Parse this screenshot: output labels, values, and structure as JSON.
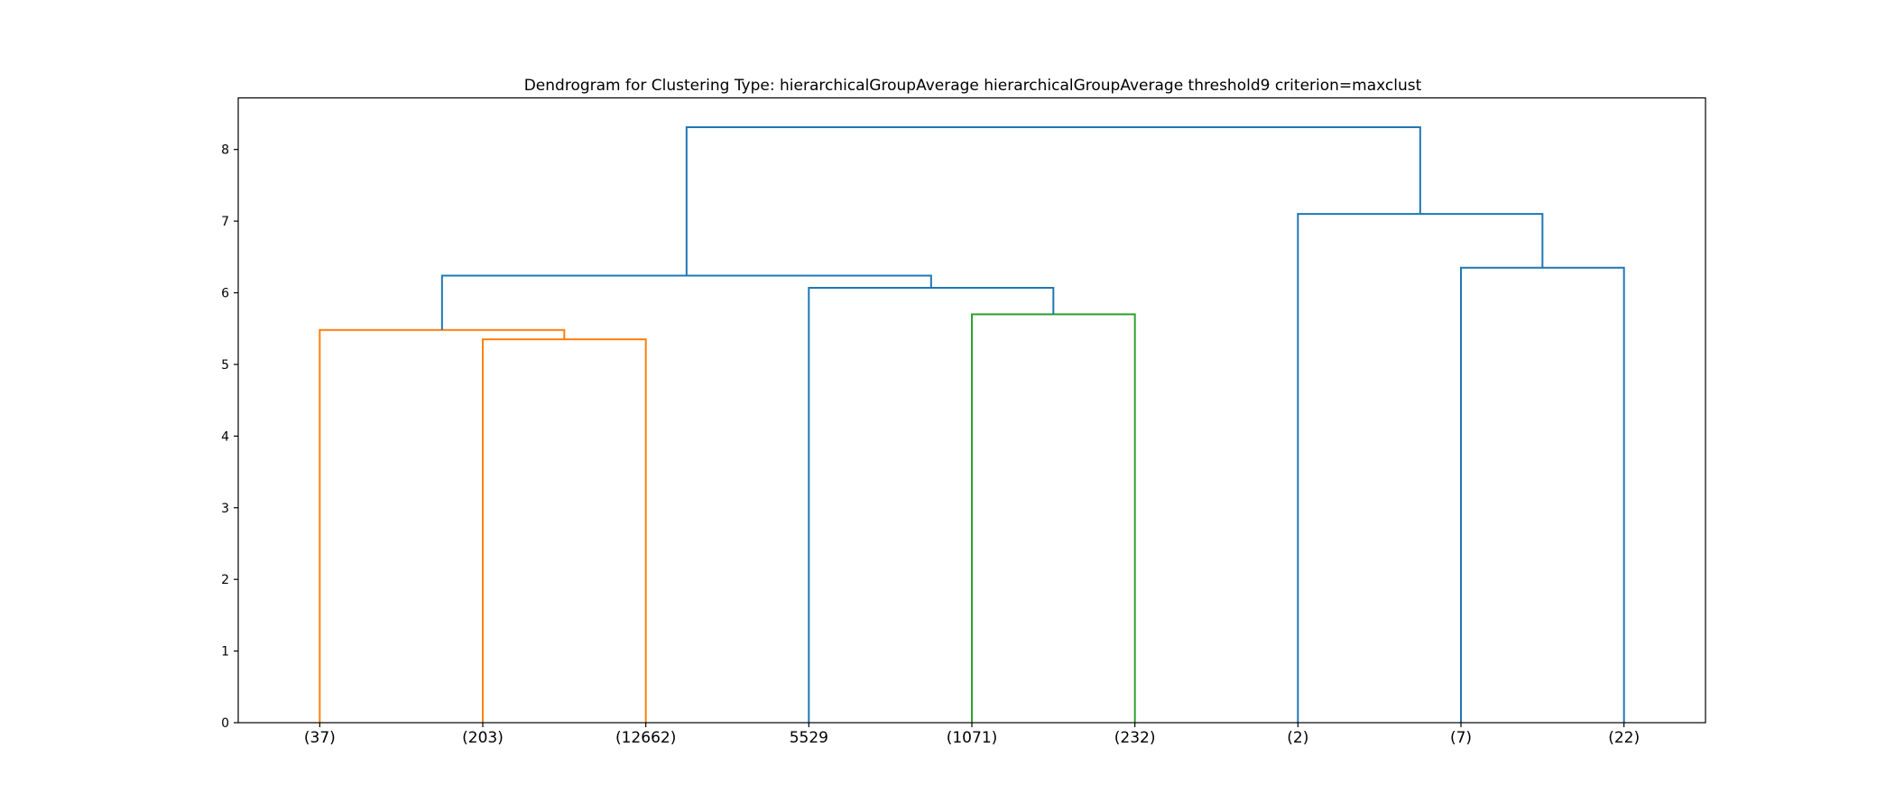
{
  "chart_data": {
    "type": "dendrogram",
    "title": "Dendrogram for Clustering Type: hierarchicalGroupAverage hierarchicalGroupAverage threshold9 criterion=maxclust",
    "xlabel": "",
    "ylabel": "",
    "ylim": [
      0,
      8.72
    ],
    "yticks": [
      0,
      1,
      2,
      3,
      4,
      5,
      6,
      7,
      8
    ],
    "grid": false,
    "leaves": [
      "(37)",
      "(203)",
      "(12662)",
      "5529",
      "(1071)",
      "(232)",
      "(2)",
      "(7)",
      "(22)"
    ],
    "colors": {
      "cluster_orange": "#ff7f0e",
      "cluster_green": "#2ca02c",
      "above_threshold": "#1f77b4"
    },
    "links": [
      {
        "left": 1,
        "right": 2,
        "height": 5.35,
        "color": "cluster_orange"
      },
      {
        "left": 0,
        "right": 9,
        "height": 5.48,
        "color": "cluster_orange"
      },
      {
        "left": 4,
        "right": 5,
        "height": 5.7,
        "color": "cluster_green"
      },
      {
        "left": 3,
        "right": 11,
        "height": 6.07,
        "color": "above_threshold"
      },
      {
        "left": 10,
        "right": 12,
        "height": 6.24,
        "color": "above_threshold"
      },
      {
        "left": 7,
        "right": 8,
        "height": 6.35,
        "color": "above_threshold"
      },
      {
        "left": 6,
        "right": 14,
        "height": 7.1,
        "color": "above_threshold"
      },
      {
        "left": 13,
        "right": 15,
        "height": 8.31,
        "color": "above_threshold"
      }
    ]
  }
}
